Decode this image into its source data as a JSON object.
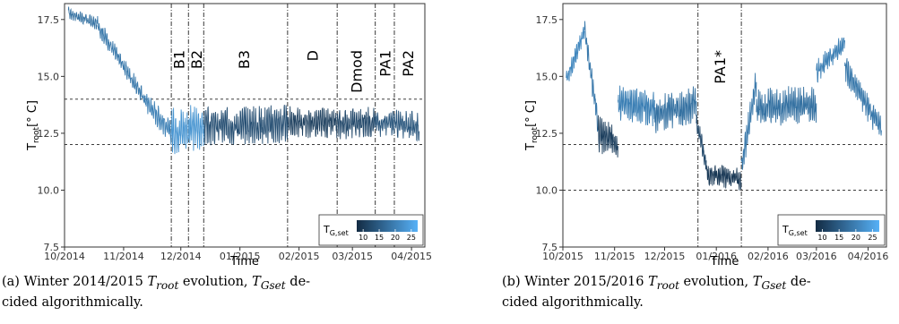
{
  "chart_data": [
    {
      "type": "line",
      "panel": "a",
      "xlabel": "Time",
      "ylabel": "T_root[° C]",
      "ylabel_main": "T",
      "ylabel_sub": "root",
      "ylabel_unit": "[° C]",
      "ylim": [
        7.5,
        18.2
      ],
      "yticks": [
        7.5,
        10.0,
        12.5,
        15.0,
        17.5
      ],
      "ytick_labels": [
        "7.5",
        "10.0",
        "12.5",
        "15.0",
        "17.5"
      ],
      "xlim": [
        "2014-10-01",
        "2015-04-08"
      ],
      "xtick_dates": [
        "2014-10-01",
        "2014-11-01",
        "2014-12-01",
        "2015-01-01",
        "2015-02-01",
        "2015-03-01",
        "2015-04-01"
      ],
      "xtick_labels": [
        "10/2014",
        "11/2014",
        "12/2014",
        "01/2015",
        "02/2015",
        "03/2015",
        "04/2015"
      ],
      "hlines": [
        12.0,
        14.0
      ],
      "phase_boundaries": [
        "2014-11-26",
        "2014-12-05",
        "2014-12-13",
        "2015-01-26",
        "2015-02-21",
        "2015-03-13",
        "2015-03-23"
      ],
      "phases": [
        {
          "label": "B1",
          "center": "2014-11-30"
        },
        {
          "label": "B2",
          "center": "2014-12-09"
        },
        {
          "label": "B3",
          "center": "2015-01-03"
        },
        {
          "label": "D",
          "center": "2015-02-08"
        },
        {
          "label": "Dmod",
          "center": "2015-03-03"
        },
        {
          "label": "PA1",
          "center": "2015-03-18"
        },
        {
          "label": "PA2",
          "center": "2015-03-30"
        }
      ],
      "segments": [
        {
          "start": "2014-10-03",
          "end": "2014-10-18",
          "base_start": 17.8,
          "base_end": 17.3,
          "amp": 0.25,
          "tgset": 18
        },
        {
          "start": "2014-10-18",
          "end": "2014-11-12",
          "base_start": 17.3,
          "base_end": 14.0,
          "amp": 0.35,
          "tgset": 19
        },
        {
          "start": "2014-11-12",
          "end": "2014-11-26",
          "base_start": 14.0,
          "base_end": 12.5,
          "amp": 0.45,
          "tgset": 20
        },
        {
          "start": "2014-11-26",
          "end": "2014-12-13",
          "base_start": 12.6,
          "base_end": 12.8,
          "amp": 0.9,
          "tgset": 23
        },
        {
          "start": "2014-12-13",
          "end": "2015-01-26",
          "base_start": 12.8,
          "base_end": 12.9,
          "amp": 0.75,
          "tgset": 13
        },
        {
          "start": "2015-01-26",
          "end": "2015-02-21",
          "base_start": 13.0,
          "base_end": 12.9,
          "amp": 0.6,
          "tgset": 11
        },
        {
          "start": "2015-02-21",
          "end": "2015-03-13",
          "base_start": 12.9,
          "base_end": 13.0,
          "amp": 0.6,
          "tgset": 12
        },
        {
          "start": "2015-03-13",
          "end": "2015-04-05",
          "base_start": 13.0,
          "base_end": 12.8,
          "amp": 0.55,
          "tgset": 14
        }
      ],
      "legend": {
        "title_main": "T",
        "title_sub": "G,set",
        "ticks": [
          10,
          15,
          20,
          25
        ],
        "range": [
          8,
          27
        ],
        "placement": "bottom-right"
      }
    },
    {
      "type": "line",
      "panel": "b",
      "xlabel": "Time",
      "ylabel": "T_root[° C]",
      "ylabel_main": "T",
      "ylabel_sub": "root",
      "ylabel_unit": "[° C]",
      "ylim": [
        7.5,
        18.2
      ],
      "yticks": [
        7.5,
        10.0,
        12.5,
        15.0,
        17.5
      ],
      "ytick_labels": [
        "7.5",
        "10.0",
        "12.5",
        "15.0",
        "17.5"
      ],
      "xlim": [
        "2015-10-01",
        "2016-04-12"
      ],
      "xtick_dates": [
        "2015-10-01",
        "2015-11-01",
        "2015-12-01",
        "2016-01-01",
        "2016-02-01",
        "2016-03-01",
        "2016-04-01"
      ],
      "xtick_labels": [
        "10/2015",
        "11/2015",
        "12/2015",
        "01/2016",
        "02/2016",
        "03/2016",
        "04/2016"
      ],
      "hlines": [
        10.0,
        12.0
      ],
      "phase_boundaries": [
        "2015-12-21",
        "2016-01-16"
      ],
      "phases": [
        {
          "label": "PA1*",
          "center": "2016-01-03"
        }
      ],
      "segments": [
        {
          "start": "2015-10-03",
          "end": "2015-10-14",
          "base_start": 14.8,
          "base_end": 17.0,
          "amp": 0.35,
          "tgset": 21
        },
        {
          "start": "2015-10-14",
          "end": "2015-10-22",
          "base_start": 17.0,
          "base_end": 13.0,
          "amp": 0.5,
          "tgset": 19
        },
        {
          "start": "2015-10-22",
          "end": "2015-11-03",
          "base_start": 12.5,
          "base_end": 12.0,
          "amp": 0.7,
          "tgset": 11
        },
        {
          "start": "2015-11-03",
          "end": "2015-11-25",
          "base_start": 13.8,
          "base_end": 13.6,
          "amp": 0.7,
          "tgset": 20
        },
        {
          "start": "2015-11-25",
          "end": "2015-12-20",
          "base_start": 13.3,
          "base_end": 13.8,
          "amp": 0.75,
          "tgset": 18
        },
        {
          "start": "2015-12-20",
          "end": "2015-12-26",
          "base_start": 13.0,
          "base_end": 11.2,
          "amp": 0.4,
          "tgset": 12
        },
        {
          "start": "2015-12-26",
          "end": "2016-01-16",
          "base_start": 10.7,
          "base_end": 10.5,
          "amp": 0.45,
          "tgset": 10
        },
        {
          "start": "2016-01-16",
          "end": "2016-01-25",
          "base_start": 11.0,
          "base_end": 14.8,
          "amp": 0.6,
          "tgset": 19
        },
        {
          "start": "2016-01-25",
          "end": "2016-03-01",
          "base_start": 13.6,
          "base_end": 13.8,
          "amp": 0.75,
          "tgset": 18
        },
        {
          "start": "2016-03-01",
          "end": "2016-03-18",
          "base_start": 15.2,
          "base_end": 16.5,
          "amp": 0.45,
          "tgset": 20
        },
        {
          "start": "2016-03-18",
          "end": "2016-04-09",
          "base_start": 15.4,
          "base_end": 12.6,
          "amp": 0.55,
          "tgset": 19
        }
      ],
      "legend": {
        "title_main": "T",
        "title_sub": "G,set",
        "ticks": [
          10,
          15,
          20,
          25
        ],
        "range": [
          8,
          27
        ],
        "placement": "bottom-right"
      }
    }
  ],
  "captions": [
    {
      "id": "a",
      "prefix": "(a) Winter 2014/2015 ",
      "v1": "T",
      "v1_sub": "root",
      "mid": " evolution, ",
      "v2": "T",
      "v2_sub": "Gset",
      "suffix1": " de-",
      "line2": "cided algorithmically."
    },
    {
      "id": "b",
      "prefix": "(b) Winter 2015/2016 ",
      "v1": "T",
      "v1_sub": "root",
      "mid": " evolution, ",
      "v2": "T",
      "v2_sub": "Gset",
      "suffix1": " de-",
      "line2": "cided algorithmically."
    }
  ]
}
